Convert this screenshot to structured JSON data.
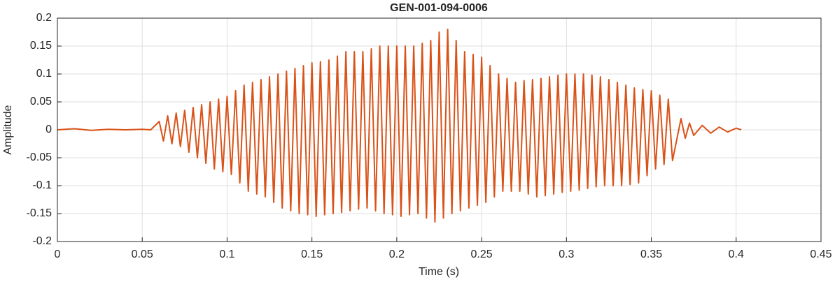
{
  "chart_data": {
    "type": "line",
    "title": "GEN-001-094-0006",
    "xlabel": "Time (s)",
    "ylabel": "Amplitude",
    "color": "#d95319",
    "grid": true,
    "xlim": [
      0,
      0.45
    ],
    "xticks": [
      0,
      0.05,
      0.1,
      0.15,
      0.2,
      0.25,
      0.3,
      0.35,
      0.4,
      0.45
    ],
    "ylim": [
      -0.2,
      0.2
    ],
    "yticks": [
      -0.2,
      -0.15,
      -0.1,
      -0.05,
      0,
      0.05,
      0.1,
      0.15,
      0.2
    ],
    "x": [
      0,
      0.01,
      0.02,
      0.03,
      0.04,
      0.05,
      0.055,
      0.06,
      0.0625,
      0.065,
      0.0675,
      0.07,
      0.0725,
      0.075,
      0.0775,
      0.08,
      0.0825,
      0.085,
      0.0875,
      0.09,
      0.0925,
      0.095,
      0.0975,
      0.1,
      0.1025,
      0.105,
      0.1075,
      0.11,
      0.1125,
      0.115,
      0.1175,
      0.12,
      0.1225,
      0.125,
      0.1275,
      0.13,
      0.1325,
      0.135,
      0.1375,
      0.14,
      0.1425,
      0.145,
      0.1475,
      0.15,
      0.1525,
      0.155,
      0.1575,
      0.16,
      0.1625,
      0.165,
      0.1675,
      0.17,
      0.1725,
      0.175,
      0.1775,
      0.18,
      0.1825,
      0.185,
      0.1875,
      0.19,
      0.1925,
      0.195,
      0.1975,
      0.2,
      0.2025,
      0.205,
      0.2075,
      0.21,
      0.2125,
      0.215,
      0.2175,
      0.22,
      0.2225,
      0.225,
      0.2275,
      0.23,
      0.2325,
      0.235,
      0.2375,
      0.24,
      0.2425,
      0.245,
      0.2475,
      0.25,
      0.2525,
      0.255,
      0.2575,
      0.26,
      0.2625,
      0.265,
      0.2675,
      0.27,
      0.2725,
      0.275,
      0.2775,
      0.28,
      0.2825,
      0.285,
      0.2875,
      0.29,
      0.2925,
      0.295,
      0.2975,
      0.3,
      0.3025,
      0.305,
      0.3075,
      0.31,
      0.3125,
      0.315,
      0.3175,
      0.32,
      0.3225,
      0.325,
      0.3275,
      0.33,
      0.3325,
      0.335,
      0.3375,
      0.34,
      0.3425,
      0.345,
      0.3475,
      0.35,
      0.3525,
      0.355,
      0.3575,
      0.36,
      0.3625,
      0.3675,
      0.37,
      0.3725,
      0.375,
      0.38,
      0.385,
      0.39,
      0.395,
      0.4,
      0.403
    ],
    "values": [
      0,
      0.002,
      -0.001,
      0.001,
      0,
      0.001,
      0,
      0.015,
      -0.02,
      0.025,
      -0.025,
      0.03,
      -0.03,
      0.035,
      -0.04,
      0.04,
      -0.05,
      0.045,
      -0.06,
      0.05,
      -0.07,
      0.055,
      -0.075,
      0.06,
      -0.08,
      0.07,
      -0.095,
      0.08,
      -0.11,
      0.085,
      -0.115,
      0.09,
      -0.12,
      0.095,
      -0.13,
      0.1,
      -0.14,
      0.105,
      -0.145,
      0.11,
      -0.15,
      0.115,
      -0.152,
      0.12,
      -0.155,
      0.122,
      -0.152,
      0.125,
      -0.15,
      0.132,
      -0.148,
      0.14,
      -0.145,
      0.14,
      -0.142,
      0.14,
      -0.14,
      0.145,
      -0.145,
      0.15,
      -0.15,
      0.15,
      -0.152,
      0.15,
      -0.155,
      0.15,
      -0.152,
      0.15,
      -0.15,
      0.155,
      -0.158,
      0.16,
      -0.165,
      0.175,
      -0.158,
      0.18,
      -0.15,
      0.16,
      -0.145,
      0.14,
      -0.14,
      0.135,
      -0.135,
      0.13,
      -0.13,
      0.115,
      -0.12,
      0.1,
      -0.11,
      0.092,
      -0.11,
      0.085,
      -0.11,
      0.088,
      -0.115,
      0.09,
      -0.12,
      0.092,
      -0.118,
      0.095,
      -0.115,
      0.098,
      -0.112,
      0.1,
      -0.11,
      0.1,
      -0.108,
      0.1,
      -0.105,
      0.098,
      -0.102,
      0.095,
      -0.1,
      0.09,
      -0.1,
      0.085,
      -0.1,
      0.08,
      -0.098,
      0.075,
      -0.095,
      0.072,
      -0.082,
      0.07,
      -0.07,
      0.062,
      -0.062,
      0.055,
      -0.055,
      0.02,
      -0.015,
      0.012,
      -0.01,
      0.008,
      -0.006,
      0.005,
      -0.004,
      0.003,
      0
    ]
  }
}
